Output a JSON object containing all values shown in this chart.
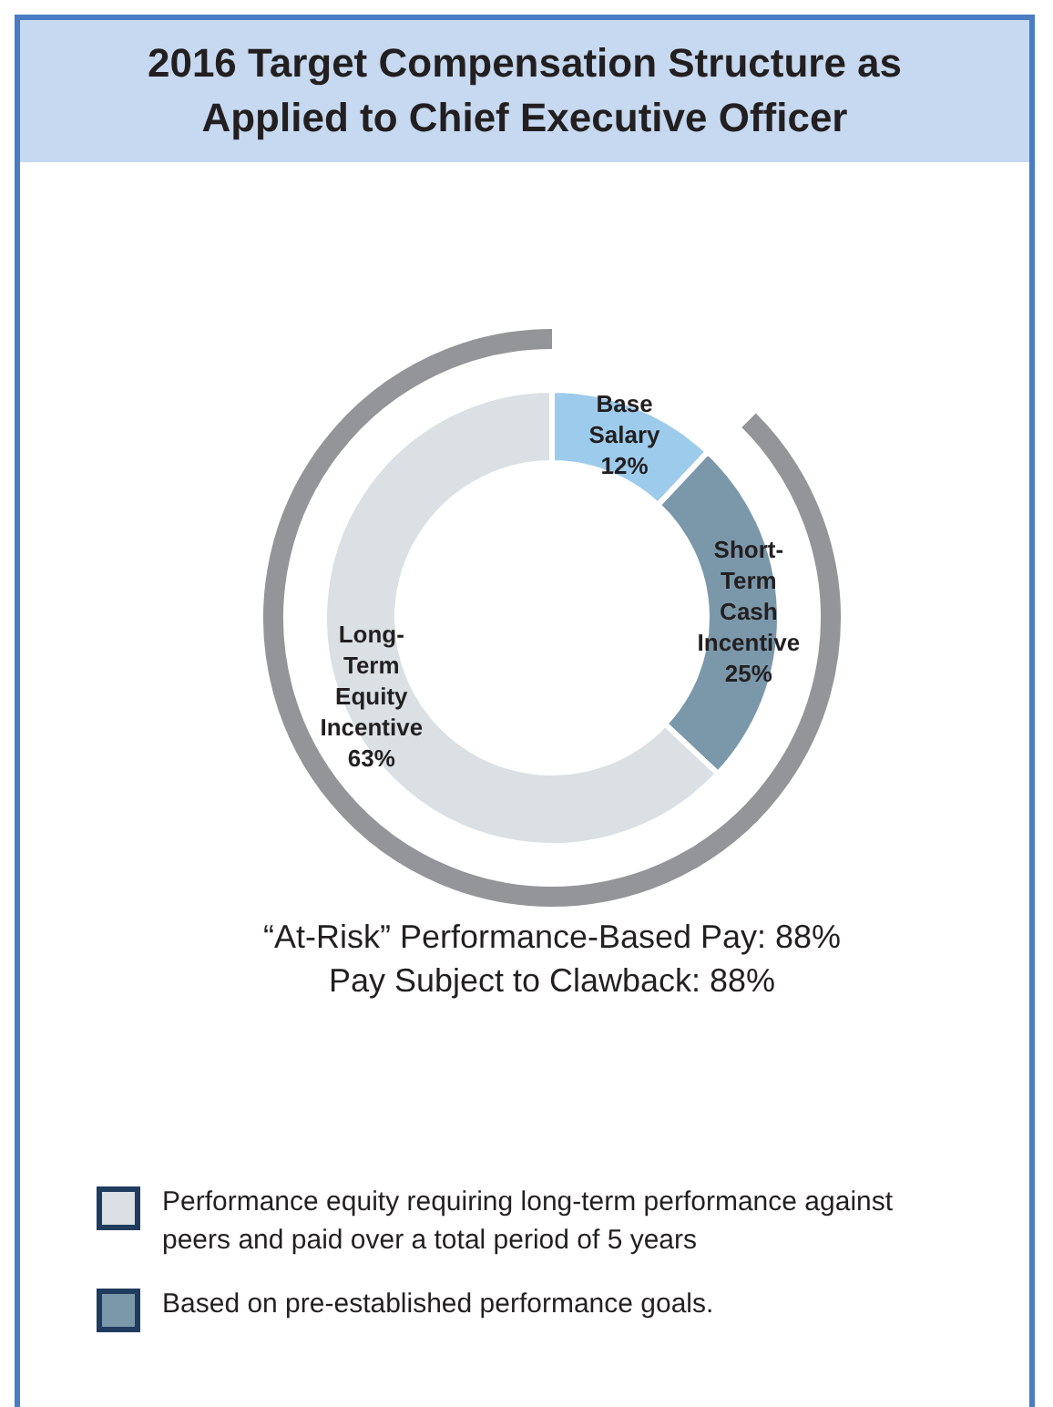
{
  "chart_data": {
    "type": "donut",
    "title": "2016 Target Compensation Structure as Applied to Chief Executive Officer",
    "categories": [
      "Base Salary",
      "Short-Term Cash Incentive",
      "Long-Term Equity Incentive"
    ],
    "values": [
      12,
      25,
      63
    ],
    "colors": [
      "#9dcbeb",
      "#7b98ab",
      "#dae0e3"
    ],
    "value_labels": [
      "12%",
      "25%",
      "63%"
    ],
    "legend": false,
    "annotations": [
      "“At-Risk” Performance-Based Pay: 88%",
      "Pay Subject to Clawback: 88%",
      "Performance equity requiring long-term performance against peers and paid over a total period of 5 years",
      "Based on pre-established performance goals."
    ]
  }
}
